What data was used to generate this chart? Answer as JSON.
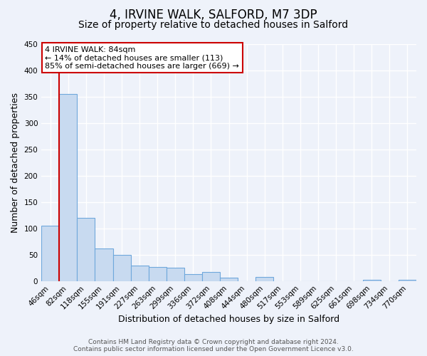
{
  "title": "4, IRVINE WALK, SALFORD, M7 3DP",
  "subtitle": "Size of property relative to detached houses in Salford",
  "xlabel": "Distribution of detached houses by size in Salford",
  "ylabel": "Number of detached properties",
  "bar_labels": [
    "46sqm",
    "82sqm",
    "118sqm",
    "155sqm",
    "191sqm",
    "227sqm",
    "263sqm",
    "299sqm",
    "336sqm",
    "372sqm",
    "408sqm",
    "444sqm",
    "480sqm",
    "517sqm",
    "553sqm",
    "589sqm",
    "625sqm",
    "661sqm",
    "698sqm",
    "734sqm",
    "770sqm"
  ],
  "bar_values": [
    105,
    355,
    120,
    62,
    50,
    29,
    26,
    25,
    13,
    17,
    7,
    0,
    8,
    0,
    0,
    0,
    0,
    0,
    3,
    0,
    2
  ],
  "bar_color": "#c8daf0",
  "bar_edge_color": "#6fa8dc",
  "property_line_x": 0.5,
  "annotation_line0": "4 IRVINE WALK: 84sqm",
  "annotation_line1": "← 14% of detached houses are smaller (113)",
  "annotation_line2": "85% of semi-detached houses are larger (669) →",
  "box_color": "#cc0000",
  "ylim": [
    0,
    450
  ],
  "yticks": [
    0,
    50,
    100,
    150,
    200,
    250,
    300,
    350,
    400,
    450
  ],
  "footer_line1": "Contains HM Land Registry data © Crown copyright and database right 2024.",
  "footer_line2": "Contains public sector information licensed under the Open Government Licence v3.0.",
  "bg_color": "#eef2fa",
  "grid_color": "#ffffff",
  "title_fontsize": 12,
  "subtitle_fontsize": 10,
  "axis_label_fontsize": 9,
  "tick_fontsize": 7.5,
  "footer_fontsize": 6.5
}
